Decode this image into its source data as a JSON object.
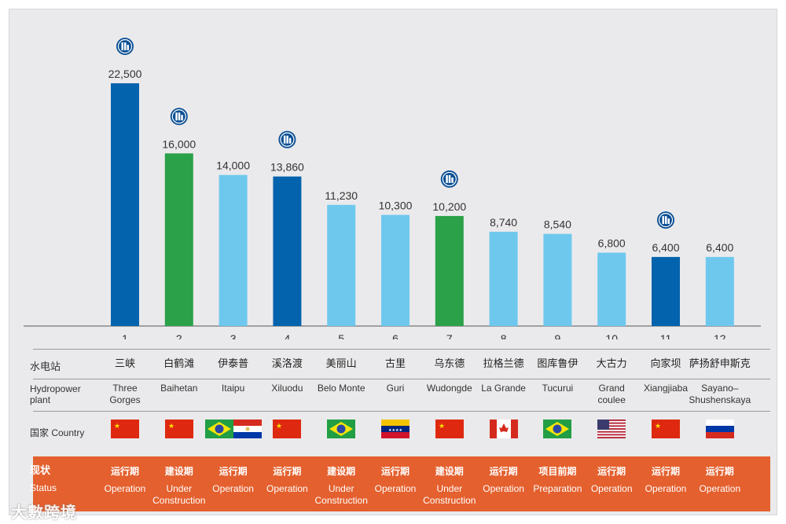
{
  "chart_data": {
    "type": "bar",
    "title": "",
    "xlabel": "",
    "ylabel": "",
    "ylim": [
      0,
      25000
    ],
    "categories": [
      "1",
      "2",
      "3",
      "4",
      "5",
      "6",
      "7",
      "8",
      "9",
      "10",
      "11",
      "12"
    ],
    "values": [
      22500,
      16000,
      14000,
      13860,
      11230,
      10300,
      10200,
      8740,
      8540,
      6800,
      6400,
      6400
    ],
    "value_labels": [
      "22,500",
      "16,000",
      "14,000",
      "13,860",
      "11,230",
      "10,300",
      "10,200",
      "8,740",
      "8,540",
      "6,800",
      "6,400",
      "6,400"
    ],
    "bar_colors": [
      "#0463ad",
      "#2ba14a",
      "#6ec8ee",
      "#0463ad",
      "#6ec8ee",
      "#6ec8ee",
      "#2ba14a",
      "#6ec8ee",
      "#6ec8ee",
      "#6ec8ee",
      "#0463ad",
      "#6ec8ee"
    ],
    "marker_icon_on": [
      true,
      true,
      false,
      true,
      false,
      false,
      true,
      false,
      false,
      false,
      true,
      false
    ],
    "marker_icon": "company-logo-icon"
  },
  "table": {
    "plant_label_cn": "水电站",
    "plant_label_en_1": "Hydropower",
    "plant_label_en_2": "plant",
    "country_label": "国家 Country",
    "status_label_cn": "现状",
    "status_label_en": "Status",
    "plants": [
      {
        "cn": "三峡",
        "en1": "Three",
        "en2": "Gorges",
        "flags": [
          "china"
        ],
        "st_cn": "运行期",
        "st_en1": "Operation",
        "st_en2": ""
      },
      {
        "cn": "白鹤滩",
        "en1": "Baihetan",
        "en2": "",
        "flags": [
          "china"
        ],
        "st_cn": "建设期",
        "st_en1": "Under",
        "st_en2": "Construction"
      },
      {
        "cn": "伊泰普",
        "en1": "Itaipu",
        "en2": "",
        "flags": [
          "brazil",
          "paraguay"
        ],
        "st_cn": "运行期",
        "st_en1": "Operation",
        "st_en2": ""
      },
      {
        "cn": "溪洛渡",
        "en1": "Xiluodu",
        "en2": "",
        "flags": [
          "china"
        ],
        "st_cn": "运行期",
        "st_en1": "Operation",
        "st_en2": ""
      },
      {
        "cn": "美丽山",
        "en1": "Belo Monte",
        "en2": "",
        "flags": [
          "brazil"
        ],
        "st_cn": "建设期",
        "st_en1": "Under",
        "st_en2": "Construction"
      },
      {
        "cn": "古里",
        "en1": "Guri",
        "en2": "",
        "flags": [
          "venezuela"
        ],
        "st_cn": "运行期",
        "st_en1": "Operation",
        "st_en2": ""
      },
      {
        "cn": "乌东德",
        "en1": "Wudongde",
        "en2": "",
        "flags": [
          "china"
        ],
        "st_cn": "建设期",
        "st_en1": "Under",
        "st_en2": "Construction"
      },
      {
        "cn": "拉格兰德",
        "en1": "La Grande",
        "en2": "",
        "flags": [
          "canada"
        ],
        "st_cn": "运行期",
        "st_en1": "Operation",
        "st_en2": ""
      },
      {
        "cn": "图库鲁伊",
        "en1": "Tucurui",
        "en2": "",
        "flags": [
          "brazil"
        ],
        "st_cn": "项目前期",
        "st_en1": "Preparation",
        "st_en2": ""
      },
      {
        "cn": "大古力",
        "en1": "Grand",
        "en2": "coulee",
        "flags": [
          "usa"
        ],
        "st_cn": "运行期",
        "st_en1": "Operation",
        "st_en2": ""
      },
      {
        "cn": "向家坝",
        "en1": "Xiangjiaba",
        "en2": "",
        "flags": [
          "china"
        ],
        "st_cn": "运行期",
        "st_en1": "Operation",
        "st_en2": ""
      },
      {
        "cn": "萨扬舒申斯克",
        "en1": "Sayano–",
        "en2": "Shushenskaya",
        "flags": [
          "russia"
        ],
        "st_cn": "运行期",
        "st_en1": "Operation",
        "st_en2": ""
      }
    ]
  },
  "watermark": "大數跨境",
  "colors": {
    "status_band": "#e4602e",
    "panel": "#eaeaec"
  }
}
